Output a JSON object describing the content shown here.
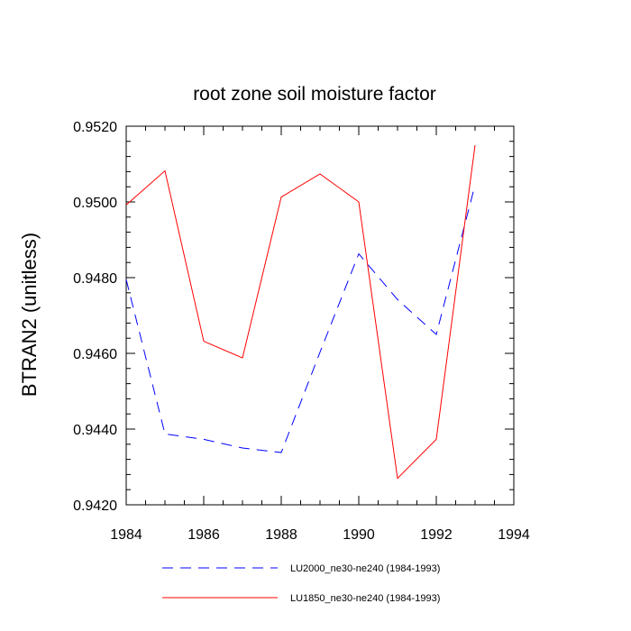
{
  "chart_data": {
    "type": "line",
    "title": "root zone soil moisture factor",
    "xlabel": "",
    "ylabel": "BTRAN2  (unitless)",
    "xlim": [
      1984,
      1994
    ],
    "ylim": [
      0.942,
      0.952
    ],
    "x_ticks": [
      {
        "value": 1984,
        "label": "1984"
      },
      {
        "value": 1986,
        "label": "1986"
      },
      {
        "value": 1988,
        "label": "1988"
      },
      {
        "value": 1990,
        "label": "1990"
      },
      {
        "value": 1992,
        "label": "1992"
      },
      {
        "value": 1994,
        "label": "1994"
      }
    ],
    "y_ticks": [
      {
        "value": 0.942,
        "label": "0.9420"
      },
      {
        "value": 0.944,
        "label": "0.9440"
      },
      {
        "value": 0.946,
        "label": "0.9460"
      },
      {
        "value": 0.948,
        "label": "0.9480"
      },
      {
        "value": 0.95,
        "label": "0.9500"
      },
      {
        "value": 0.952,
        "label": "0.9520"
      }
    ],
    "x": [
      1984,
      1985,
      1986,
      1987,
      1988,
      1989,
      1990,
      1991,
      1992,
      1993
    ],
    "series": [
      {
        "name": "LU2000_ne30-ne240 (1984-1993)",
        "color": "#0000ff",
        "dash": "dashed",
        "values": [
          0.94795,
          0.94387,
          0.94373,
          0.9435,
          0.94338,
          0.94603,
          0.94863,
          0.94742,
          0.9465,
          0.95045
        ]
      },
      {
        "name": "LU1850_ne30-ne240 (1984-1993)",
        "color": "#ff0000",
        "dash": "solid",
        "values": [
          0.94992,
          0.95082,
          0.94632,
          0.94588,
          0.95013,
          0.95074,
          0.95,
          0.9427,
          0.94373,
          0.9515
        ]
      }
    ],
    "grid": false,
    "legend_placement": "bottom"
  }
}
